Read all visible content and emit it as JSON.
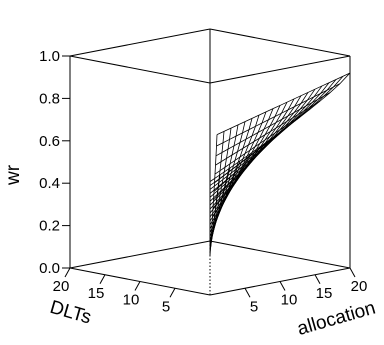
{
  "chart_data": {
    "type": "surface",
    "title": "",
    "zlabel": "wr",
    "xlabel": "allocation",
    "ylabel": "DLTs",
    "zlim": [
      0,
      1
    ],
    "xlim": [
      0,
      20
    ],
    "ylim": [
      0,
      20
    ],
    "z_ticks": [
      "0.0",
      "0.2",
      "0.4",
      "0.6",
      "0.8",
      "1.0"
    ],
    "x_ticks": [
      "5",
      "10",
      "15",
      "20"
    ],
    "y_ticks": [
      "5",
      "10",
      "15",
      "20"
    ],
    "surface": {
      "allocation_range": [
        1,
        20
      ],
      "dlts_rule": "DLTs from 0 to allocation",
      "corner_values": {
        "allocation_1_dlts_0": 0.75,
        "allocation_20_dlts_0": 0.92,
        "allocation_20_dlts_20": 0.28,
        "min_value": 0.17
      }
    },
    "grid": false,
    "legend": "none"
  }
}
